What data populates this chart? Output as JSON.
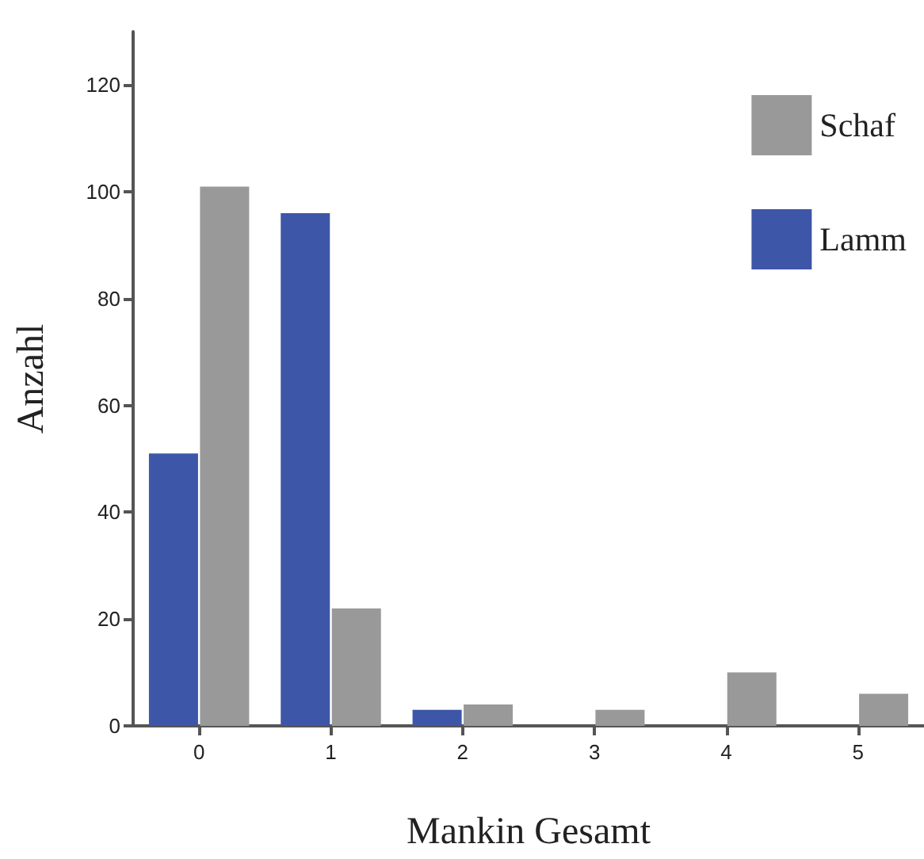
{
  "chart_data": {
    "type": "bar",
    "xlabel": "Mankin Gesamt",
    "ylabel": "Anzahl",
    "categories": [
      "0",
      "1",
      "2",
      "3",
      "4",
      "5"
    ],
    "series": [
      {
        "name": "Lamm",
        "color": "#3d56a8",
        "values": [
          51,
          96,
          3,
          null,
          null,
          null
        ]
      },
      {
        "name": "Schaf",
        "color": "#999999",
        "values": [
          101,
          22,
          4,
          3,
          10,
          6
        ]
      }
    ],
    "ylim": [
      0,
      130
    ],
    "yticks": [
      0,
      20,
      40,
      60,
      80,
      100,
      120
    ],
    "grid": false,
    "legend": "top right"
  }
}
